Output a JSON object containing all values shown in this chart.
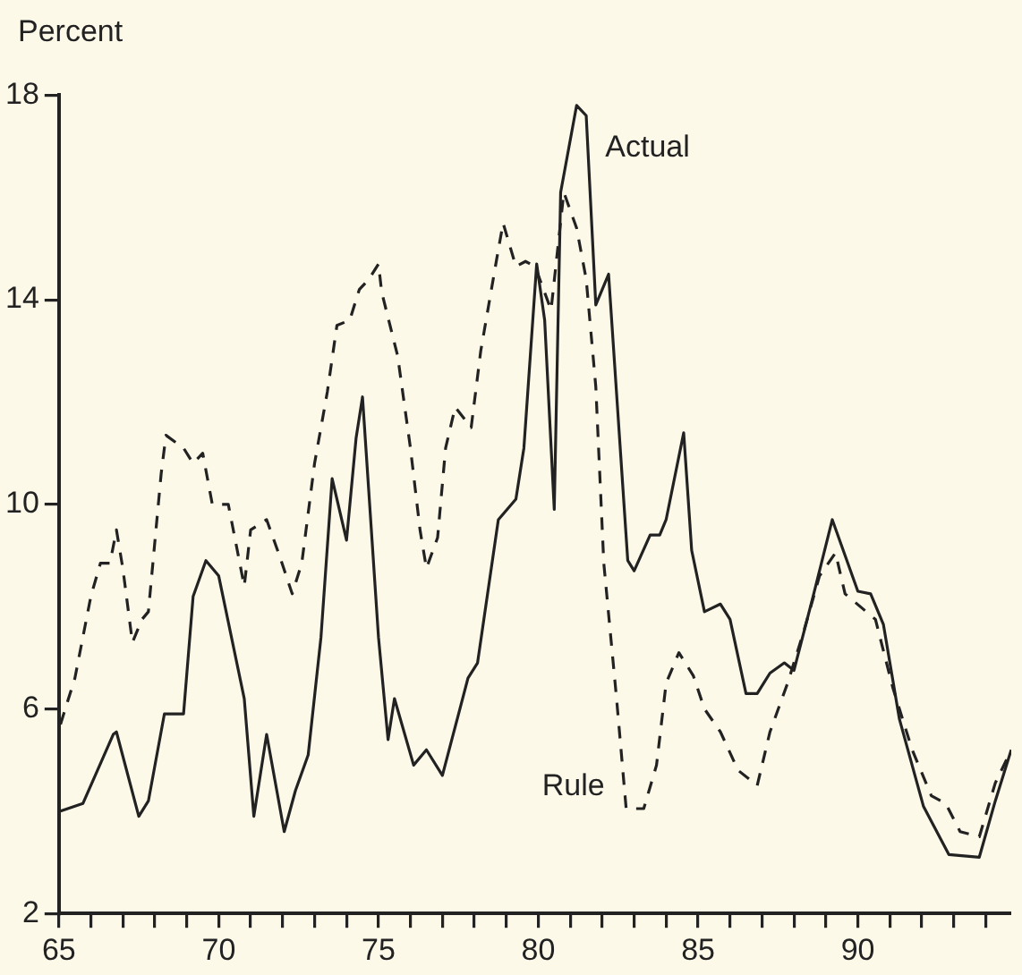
{
  "chart_data": {
    "type": "line",
    "ylabel": "Percent",
    "xlim": [
      65,
      94.8
    ],
    "ylim": [
      2,
      18
    ],
    "yticks": [
      2,
      6,
      10,
      14,
      18
    ],
    "xticks": [
      65,
      {
        "value": 66,
        "label": null
      },
      {
        "value": 67,
        "label": null
      },
      {
        "value": 68,
        "label": null
      },
      {
        "value": 69,
        "label": null
      },
      70,
      {
        "value": 71,
        "label": null
      },
      {
        "value": 72,
        "label": null
      },
      {
        "value": 73,
        "label": null
      },
      {
        "value": 74,
        "label": null
      },
      75,
      {
        "value": 76,
        "label": null
      },
      {
        "value": 77,
        "label": null
      },
      {
        "value": 78,
        "label": null
      },
      {
        "value": 79,
        "label": null
      },
      80,
      {
        "value": 81,
        "label": null
      },
      {
        "value": 82,
        "label": null
      },
      {
        "value": 83,
        "label": null
      },
      {
        "value": 84,
        "label": null
      },
      85,
      {
        "value": 86,
        "label": null
      },
      {
        "value": 87,
        "label": null
      },
      {
        "value": 88,
        "label": null
      },
      {
        "value": 89,
        "label": null
      },
      90,
      {
        "value": 91,
        "label": null
      },
      {
        "value": 92,
        "label": null
      },
      {
        "value": 93,
        "label": null
      },
      {
        "value": 94,
        "label": null
      }
    ],
    "grid": false,
    "legend": false,
    "marker": "none",
    "series": [
      {
        "name": "Actual",
        "color": "#222222",
        "line_style": "solid",
        "x": [
          65.05,
          65.75,
          66.7,
          66.8,
          67.5,
          67.8,
          68.3,
          68.9,
          69.2,
          69.6,
          70.0,
          70.8,
          71.1,
          71.5,
          72.05,
          72.4,
          72.8,
          73.2,
          73.55,
          74.0,
          74.3,
          74.5,
          75.0,
          75.3,
          75.5,
          76.1,
          76.5,
          77.0,
          77.8,
          78.1,
          78.75,
          79.3,
          79.55,
          79.95,
          80.2,
          80.5,
          80.7,
          81.2,
          81.5,
          81.8,
          82.2,
          82.8,
          83.0,
          83.5,
          83.8,
          84.0,
          84.55,
          84.8,
          85.2,
          85.7,
          86.0,
          86.5,
          86.85,
          87.25,
          87.7,
          88.0,
          88.6,
          89.2,
          90.0,
          90.4,
          90.8,
          91.3,
          92.05,
          92.85,
          93.8,
          94.3,
          94.8
        ],
        "values": [
          4.0,
          4.15,
          5.5,
          5.55,
          3.9,
          4.2,
          5.9,
          5.9,
          8.2,
          8.9,
          8.6,
          6.2,
          3.9,
          5.5,
          3.6,
          4.4,
          5.1,
          7.4,
          10.5,
          9.3,
          11.3,
          12.1,
          7.4,
          5.4,
          6.2,
          4.9,
          5.2,
          4.7,
          6.6,
          6.9,
          9.7,
          10.1,
          11.1,
          14.7,
          13.6,
          9.9,
          16.1,
          17.8,
          17.6,
          13.9,
          14.5,
          8.9,
          8.7,
          9.4,
          9.4,
          9.7,
          11.4,
          9.1,
          7.9,
          8.05,
          7.75,
          6.3,
          6.3,
          6.7,
          6.9,
          6.75,
          8.2,
          9.7,
          8.3,
          8.25,
          7.65,
          5.8,
          4.1,
          3.15,
          3.1,
          4.2,
          5.2
        ]
      },
      {
        "name": "Rule",
        "color": "#222222",
        "line_style": "dashed",
        "x": [
          65.05,
          65.5,
          66.0,
          66.3,
          66.6,
          66.8,
          67.0,
          67.3,
          67.6,
          67.8,
          68.2,
          68.35,
          68.9,
          69.2,
          69.5,
          69.8,
          70.3,
          70.8,
          71.0,
          71.5,
          71.9,
          72.3,
          72.6,
          73.0,
          73.4,
          73.7,
          74.1,
          74.4,
          74.7,
          75.0,
          75.1,
          75.6,
          76.0,
          76.3,
          76.5,
          76.85,
          77.1,
          77.4,
          77.9,
          78.2,
          78.7,
          78.9,
          79.3,
          79.6,
          79.9,
          80.4,
          80.8,
          81.2,
          81.5,
          81.8,
          82.05,
          82.45,
          82.75,
          83.3,
          83.7,
          84.0,
          84.4,
          84.85,
          85.2,
          85.7,
          86.25,
          86.85,
          87.25,
          87.8,
          88.3,
          88.8,
          89.3,
          89.6,
          90.55,
          91.1,
          91.7,
          92.3,
          92.75,
          93.2,
          93.8,
          94.3,
          94.8
        ],
        "values": [
          5.7,
          6.6,
          8.2,
          8.85,
          8.85,
          9.5,
          8.75,
          7.3,
          7.75,
          7.9,
          10.6,
          11.35,
          11.1,
          10.8,
          11.0,
          10.0,
          10.0,
          8.4,
          9.5,
          9.7,
          9.0,
          8.25,
          8.85,
          10.8,
          12.2,
          13.5,
          13.6,
          14.2,
          14.4,
          14.7,
          14.15,
          12.9,
          11.1,
          9.5,
          8.75,
          9.35,
          11.1,
          11.9,
          11.5,
          13.0,
          14.8,
          15.5,
          14.65,
          14.75,
          14.65,
          13.8,
          16.1,
          15.4,
          14.4,
          12.3,
          8.85,
          6.2,
          4.05,
          4.05,
          4.9,
          6.5,
          7.1,
          6.65,
          6.0,
          5.55,
          4.8,
          4.5,
          5.55,
          6.5,
          7.5,
          8.6,
          9.05,
          8.25,
          7.75,
          6.4,
          5.2,
          4.3,
          4.15,
          3.6,
          3.5,
          4.55,
          5.2
        ]
      }
    ]
  }
}
